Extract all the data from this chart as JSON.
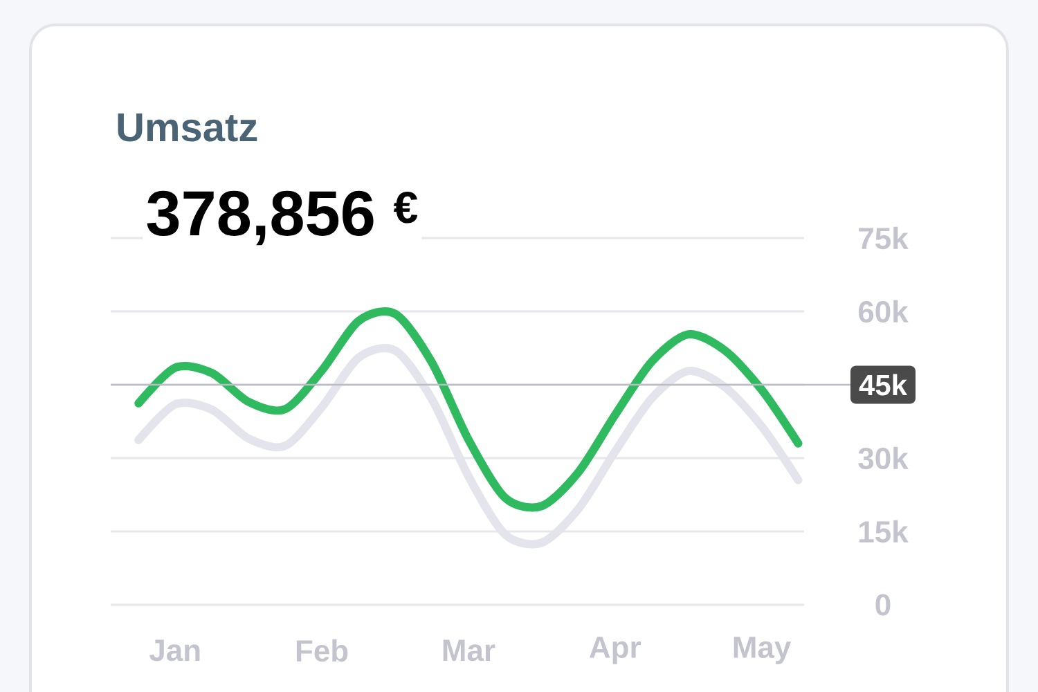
{
  "chart_data": {
    "type": "line",
    "title": "Umsatz",
    "subtitle": "378,856 $^{€}$",
    "categories": [
      null,
      "Jan",
      null,
      null,
      null,
      "Feb",
      null,
      null,
      null,
      "Mar",
      null,
      null,
      null,
      "Apr",
      null,
      null,
      null,
      "May",
      null
    ],
    "ylim": [
      0,
      75000
    ],
    "yticks": [
      {
        "value": 0,
        "label": "0"
      },
      {
        "value": 15000,
        "label": "15k"
      },
      {
        "value": 30000,
        "label": "30k"
      },
      {
        "value": 45000,
        "label": null
      },
      {
        "value": 60000,
        "label": "60k"
      },
      {
        "value": 75000,
        "label": "75k"
      }
    ],
    "grid": "y",
    "series": [
      {
        "color": "#e4e4ec",
        "values": [
          33700,
          41000,
          39900,
          34000,
          32500,
          40400,
          50500,
          52000,
          42100,
          26300,
          14400,
          12700,
          19600,
          31300,
          42200,
          47800,
          44500,
          36500,
          25500
        ]
      },
      {
        "color": "#2fba5f",
        "values": [
          41200,
          48500,
          47400,
          41500,
          40000,
          47900,
          58000,
          59500,
          49600,
          33800,
          21900,
          20200,
          27100,
          38800,
          49700,
          55300,
          52000,
          44000,
          33000
        ]
      }
    ],
    "ref_lines": [
      {
        "axis": "y",
        "value": 45000,
        "label": "45k",
        "color": "#bcbcc6"
      }
    ]
  }
}
